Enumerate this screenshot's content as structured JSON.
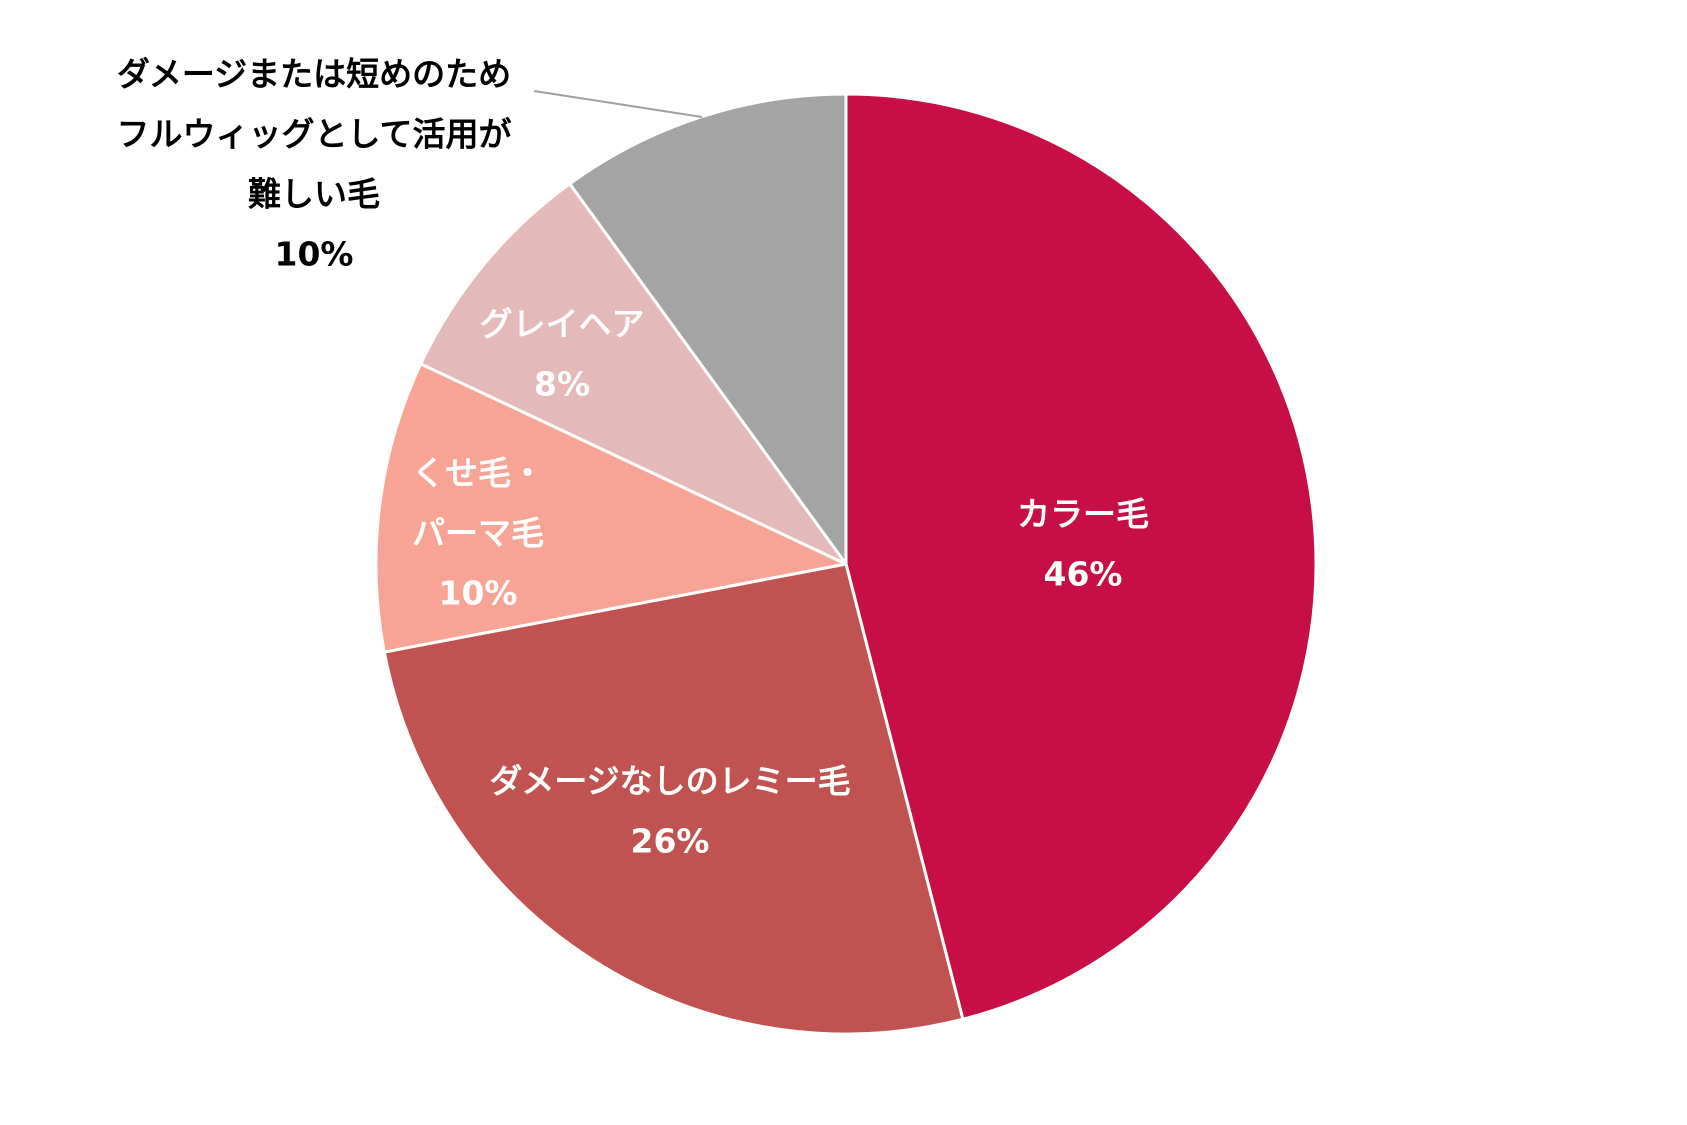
{
  "chart_data": {
    "type": "pie",
    "start": "12 o'clock",
    "direction": "clockwise",
    "slices": [
      {
        "label": [
          "カラー毛"
        ],
        "value": 46,
        "value_label": "46%",
        "color": "#C70E47",
        "label_color": "#ffffff"
      },
      {
        "label": [
          "ダメージなしのレミー毛"
        ],
        "value": 26,
        "value_label": "26%",
        "color": "#C05251",
        "label_color": "#ffffff"
      },
      {
        "label": [
          "くせ毛・",
          "パーマ毛"
        ],
        "value": 10,
        "value_label": "10%",
        "color": "#F7A497",
        "label_color": "#ffffff"
      },
      {
        "label": [
          "グレイヘア"
        ],
        "value": 8,
        "value_label": "8%",
        "color": "#E4B9B9",
        "label_color": "#ffffff"
      },
      {
        "label": [
          "ダメージまたは短めのため",
          "フルウィッグとして活用が",
          "難しい毛"
        ],
        "value": 10,
        "value_label": "10%",
        "color": "#A4A4A4",
        "label_color": "#000000"
      }
    ]
  }
}
